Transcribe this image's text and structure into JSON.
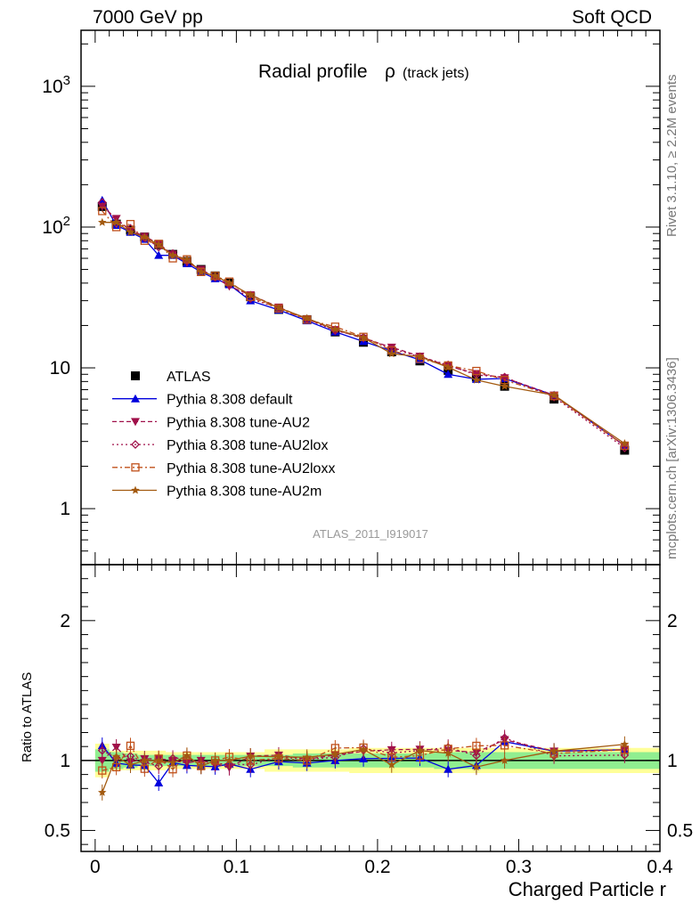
{
  "header": {
    "left": "7000 GeV pp",
    "right": "Soft QCD"
  },
  "side": {
    "rivet": "Rivet 3.1.10, ≥ 2.2M events",
    "mcplots": "mcplots.cern.ch [arXiv:1306.3436]"
  },
  "chart_data": {
    "type": "line",
    "title": "Radial profile",
    "title_symbol": "ρ",
    "title_suffix": "(track jets)",
    "xlabel": "Charged Particle r",
    "ylabel_ratio": "Ratio to ATLAS",
    "analysis_label": "ATLAS_2011_I919017",
    "xlim": [
      -0.01,
      0.4
    ],
    "ylim": [
      0.4,
      2500
    ],
    "yscale": "log",
    "ratio_ylim": [
      0.35,
      2.4
    ],
    "xticks": [
      0,
      0.1,
      0.2,
      0.3,
      0.4
    ],
    "yticks": [
      1,
      10,
      100,
      1000
    ],
    "ytick_labels": [
      "1",
      "10",
      "10^2",
      "10^3"
    ],
    "ratio_yticks": [
      0.5,
      1,
      2
    ],
    "x": [
      0.005,
      0.015,
      0.025,
      0.035,
      0.045,
      0.055,
      0.065,
      0.075,
      0.085,
      0.095,
      0.11,
      0.13,
      0.15,
      0.17,
      0.19,
      0.21,
      0.23,
      0.25,
      0.27,
      0.29,
      0.325,
      0.375
    ],
    "legend_position": "lower-left",
    "series": [
      {
        "name": "ATLAS",
        "color": "#000000",
        "style": "data",
        "marker": "square",
        "values": [
          140,
          105,
          95,
          85,
          75,
          64,
          57,
          50,
          45,
          40,
          32,
          26,
          22,
          18,
          15.2,
          13,
          11.2,
          9.6,
          8.6,
          7.4,
          6,
          2.6
        ]
      },
      {
        "name": "Pythia 8.308 default",
        "color": "#0000dd",
        "style": "solid",
        "marker": "triangle-up",
        "values": [
          155,
          103,
          92,
          82,
          63,
          63,
          55,
          48,
          43,
          39,
          30,
          25.8,
          21.6,
          18,
          15.4,
          13.2,
          11.4,
          9,
          8.3,
          8.4,
          6.4,
          2.8
        ]
      },
      {
        "name": "Pythia 8.308 tune-AU2",
        "color": "#a0104a",
        "style": "dashed",
        "marker": "triangle-down",
        "values": [
          140,
          115,
          94,
          86,
          76,
          64,
          56,
          50,
          44,
          38,
          33,
          27,
          22.2,
          18.7,
          16.2,
          14,
          12.1,
          10.3,
          9.1,
          8.5,
          6.4,
          2.8
        ]
      },
      {
        "name": "Pythia 8.308 tune-AU2lox",
        "color": "#a0104a",
        "style": "dotted",
        "marker": "diamond-open",
        "values": [
          150,
          107,
          98,
          84,
          72,
          65,
          58,
          49,
          44,
          39,
          31,
          26.6,
          22.2,
          18.4,
          16.5,
          13.7,
          12,
          10.5,
          8.9,
          8.6,
          6.2,
          2.7
        ]
      },
      {
        "name": "Pythia 8.308 tune-AU2loxx",
        "color": "#c0501a",
        "style": "dashdot",
        "marker": "square-open",
        "values": [
          130,
          100,
          105,
          80,
          76,
          60,
          59,
          48,
          45,
          41,
          32,
          26.4,
          22,
          19.6,
          16.6,
          13.3,
          11.6,
          10.4,
          9.5,
          8.2,
          6.3,
          2.8
        ]
      },
      {
        "name": "Pythia 8.308 tune-AU2m",
        "color": "#a35a10",
        "style": "solid",
        "marker": "star",
        "values": [
          108,
          108,
          92,
          85,
          75,
          63,
          59,
          48,
          45,
          40,
          33,
          26.7,
          22.5,
          18.8,
          16.4,
          12.6,
          12,
          10.1,
          8.2,
          7.4,
          6.4,
          2.9
        ]
      }
    ],
    "ratio_bands": {
      "inner_color": "#90ee90",
      "outer_color": "#ffff99",
      "inner": [
        0.08,
        0.06,
        0.05,
        0.04,
        0.04,
        0.04,
        0.04,
        0.04,
        0.04,
        0.04,
        0.04,
        0.04,
        0.05,
        0.05,
        0.05,
        0.05,
        0.05,
        0.06,
        0.06,
        0.06,
        0.06,
        0.06
      ],
      "outer": [
        0.12,
        0.07,
        0.07,
        0.07,
        0.07,
        0.06,
        0.06,
        0.06,
        0.06,
        0.06,
        0.06,
        0.08,
        0.08,
        0.08,
        0.09,
        0.09,
        0.09,
        0.09,
        0.09,
        0.09,
        0.09,
        0.09
      ]
    }
  }
}
